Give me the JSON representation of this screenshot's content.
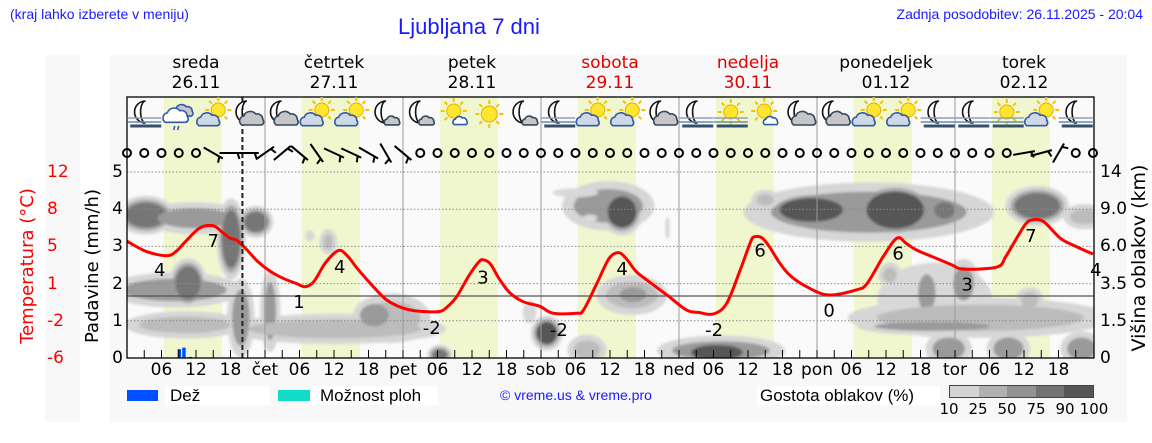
{
  "header": {
    "region_hint": "(kraj lahko izberete v meniju)",
    "title": "Ljubljana 7 dni",
    "last_update": "Zadnja posodobitev: 26.11.2025 - 20:04"
  },
  "days": [
    {
      "name": "sreda",
      "date": "26.11",
      "weekend": false
    },
    {
      "name": "četrtek",
      "date": "27.11",
      "weekend": false
    },
    {
      "name": "petek",
      "date": "28.11",
      "weekend": false
    },
    {
      "name": "sobota",
      "date": "29.11",
      "weekend": true
    },
    {
      "name": "nedelja",
      "date": "30.11",
      "weekend": true
    },
    {
      "name": "ponedeljek",
      "date": "01.12",
      "weekend": false
    },
    {
      "name": "torek",
      "date": "02.12",
      "weekend": false
    }
  ],
  "axes": {
    "temperature_title": "Temperatura (°C)",
    "temperature_ticks": [
      "12",
      "8",
      "5",
      "1",
      "-2",
      "-6"
    ],
    "precip_title": "Padavine (mm/h)",
    "precip_ticks": [
      "5",
      "4",
      "3",
      "2",
      "1",
      "0"
    ],
    "cloud_height_title": "Višina oblakov (km)",
    "cloud_height_ticks": [
      "14",
      "9.0",
      "6.0",
      "3.5",
      "1.5",
      "0"
    ]
  },
  "legend": {
    "rain_label": "Dež",
    "showers_label": "Možnost ploh",
    "copyright": "© vreme.us & vreme.pro",
    "cloud_density_label": "Gostota oblakov (%)",
    "cloud_density_scale": [
      "10",
      "25",
      "50",
      "75",
      "90",
      "100"
    ]
  },
  "colors": {
    "header_text": "#1a1aff",
    "weekend": "#e00000",
    "weekday": "#000000",
    "temperature": "#ff0000",
    "rain": "#0050ff",
    "showers": "#10dcc8",
    "daylight_band": "#f0f7cf",
    "density": [
      "#d4d4d4",
      "#b0b0b0",
      "#939393",
      "#737373",
      "#565656"
    ]
  },
  "chart_data": {
    "type": "line",
    "title": "Ljubljana 7 dni",
    "xlabel": "",
    "x_unit": "hours from 26.11 00:00",
    "x_range": [
      0,
      168
    ],
    "now_hour": 20.07,
    "daylight": {
      "start_hour": 6.4,
      "end_hour": 16.5
    },
    "grid": true,
    "x_tick_labels": [
      {
        "hour": 6,
        "label": "06"
      },
      {
        "hour": 12,
        "label": "12"
      },
      {
        "hour": 18,
        "label": "18"
      },
      {
        "hour": 24,
        "label": "čet"
      },
      {
        "hour": 30,
        "label": "06"
      },
      {
        "hour": 36,
        "label": "12"
      },
      {
        "hour": 42,
        "label": "18"
      },
      {
        "hour": 48,
        "label": "pet"
      },
      {
        "hour": 54,
        "label": "06"
      },
      {
        "hour": 60,
        "label": "12"
      },
      {
        "hour": 66,
        "label": "18"
      },
      {
        "hour": 72,
        "label": "sob"
      },
      {
        "hour": 78,
        "label": "06"
      },
      {
        "hour": 84,
        "label": "12"
      },
      {
        "hour": 90,
        "label": "18"
      },
      {
        "hour": 96,
        "label": "ned"
      },
      {
        "hour": 102,
        "label": "06"
      },
      {
        "hour": 108,
        "label": "12"
      },
      {
        "hour": 114,
        "label": "18"
      },
      {
        "hour": 120,
        "label": "pon"
      },
      {
        "hour": 126,
        "label": "06"
      },
      {
        "hour": 132,
        "label": "12"
      },
      {
        "hour": 138,
        "label": "18"
      },
      {
        "hour": 144,
        "label": "tor"
      },
      {
        "hour": 150,
        "label": "06"
      },
      {
        "hour": 156,
        "label": "12"
      },
      {
        "hour": 162,
        "label": "18"
      }
    ],
    "precip_axis": {
      "label": "Padavine (mm/h)",
      "ylim": [
        0,
        5
      ],
      "ticks": [
        0,
        1,
        2,
        3,
        4,
        5
      ]
    },
    "temperature_axis": {
      "label": "Temperatura (°C)",
      "ylim": [
        -6,
        12
      ],
      "ticks": [
        -6,
        -2,
        1,
        5,
        8,
        12
      ]
    },
    "cloud_height_axis": {
      "label": "Višina oblakov (km)",
      "ticks": [
        0,
        1.5,
        3.5,
        6.0,
        9.0,
        14
      ]
    },
    "series": [
      {
        "name": "Temperatura",
        "type": "line",
        "color": "#ff0000",
        "points": [
          [
            0,
            5.3
          ],
          [
            3.4,
            4.3
          ],
          [
            6.9,
            3.9
          ],
          [
            8.5,
            4.3
          ],
          [
            10.4,
            5.4
          ],
          [
            12.7,
            6.6
          ],
          [
            15,
            6.8
          ],
          [
            16.5,
            6.2
          ],
          [
            17.9,
            5.6
          ],
          [
            19.1,
            5.4
          ],
          [
            20.8,
            4.5
          ],
          [
            22.8,
            3.3
          ],
          [
            24.9,
            2.4
          ],
          [
            27.2,
            1.7
          ],
          [
            29.5,
            1.2
          ],
          [
            31,
            0.9
          ],
          [
            32.5,
            1.4
          ],
          [
            34.5,
            3.2
          ],
          [
            36.75,
            4.4
          ],
          [
            38.3,
            3.9
          ],
          [
            40,
            2.7
          ],
          [
            41.7,
            1.6
          ],
          [
            43.5,
            0.5
          ],
          [
            45.2,
            -0.4
          ],
          [
            47.2,
            -1.0
          ],
          [
            49.2,
            -1.35
          ],
          [
            51.5,
            -1.5
          ],
          [
            54.4,
            -1.5
          ],
          [
            55.8,
            -1.0
          ],
          [
            57.3,
            -0.1
          ],
          [
            59.5,
            2.0
          ],
          [
            61.2,
            3.3
          ],
          [
            62,
            3.5
          ],
          [
            63.2,
            3.1
          ],
          [
            64.8,
            1.6
          ],
          [
            66.6,
            0.3
          ],
          [
            68.9,
            -0.55
          ],
          [
            71.8,
            -1.0
          ],
          [
            74.1,
            -1.67
          ],
          [
            78.2,
            -1.67
          ],
          [
            79.4,
            -1.35
          ],
          [
            81.7,
            1.2
          ],
          [
            83.8,
            3.6
          ],
          [
            85.4,
            4.2
          ],
          [
            86.7,
            3.7
          ],
          [
            88.5,
            2.4
          ],
          [
            90.4,
            1.55
          ],
          [
            93.9,
            0.1
          ],
          [
            97.3,
            -1.35
          ],
          [
            99.5,
            -1.6
          ],
          [
            102,
            -1.74
          ],
          [
            104.3,
            -0.7
          ],
          [
            106.7,
            2.6
          ],
          [
            108.5,
            5.3
          ],
          [
            109.2,
            5.74
          ],
          [
            110.5,
            5.6
          ],
          [
            111.8,
            4.7
          ],
          [
            113.5,
            3.2
          ],
          [
            115.3,
            2.0
          ],
          [
            118.2,
            0.9
          ],
          [
            122,
            0.1
          ],
          [
            126.9,
            0.6
          ],
          [
            128.7,
            1.2
          ],
          [
            131.5,
            3.8
          ],
          [
            133.9,
            5.6
          ],
          [
            135.5,
            5.1
          ],
          [
            137.3,
            4.45
          ],
          [
            141.4,
            3.5
          ],
          [
            143.5,
            3.0
          ],
          [
            145.5,
            2.6
          ],
          [
            151.3,
            2.8
          ],
          [
            152.8,
            3.8
          ],
          [
            154.2,
            5.1
          ],
          [
            156.2,
            6.9
          ],
          [
            157.4,
            7.36
          ],
          [
            159.4,
            7.2
          ],
          [
            162.3,
            5.6
          ],
          [
            165,
            4.8
          ],
          [
            168,
            4.06
          ]
        ]
      },
      {
        "name": "Dež",
        "type": "bar",
        "color": "#0050ff",
        "bars": [
          {
            "start": 8.8,
            "end": 9.4,
            "value": 0.24
          },
          {
            "start": 9.6,
            "end": 10.2,
            "value": 0.28
          },
          {
            "start": 10.7,
            "end": 11.3,
            "value": 0.03
          }
        ]
      }
    ],
    "temperature_labels": [
      {
        "text": "4",
        "hour": 5.7,
        "pos": 2.5
      },
      {
        "text": "7",
        "hour": 15.0,
        "pos": 5.3
      },
      {
        "text": "1",
        "hour": 29.9,
        "pos": -0.6
      },
      {
        "text": "4",
        "hour": 37.0,
        "pos": 2.8
      },
      {
        "text": "-2",
        "hour": 53.0,
        "pos": -3.1
      },
      {
        "text": "3",
        "hour": 61.9,
        "pos": 1.8
      },
      {
        "text": "-2",
        "hour": 75.1,
        "pos": -3.3
      },
      {
        "text": "4",
        "hour": 86.1,
        "pos": 2.6
      },
      {
        "text": "-2",
        "hour": 102.1,
        "pos": -3.3
      },
      {
        "text": "6",
        "hour": 110.1,
        "pos": 4.4
      },
      {
        "text": "0",
        "hour": 122.1,
        "pos": -1.4
      },
      {
        "text": "6",
        "hour": 134.1,
        "pos": 4.1
      },
      {
        "text": "3",
        "hour": 146.1,
        "pos": 1.1
      },
      {
        "text": "7",
        "hour": 157.2,
        "pos": 5.8
      },
      {
        "text": "4",
        "hour": 168.5,
        "pos": 2.5
      }
    ],
    "weather_icons": [
      {
        "hour": 3,
        "type": "moon-fog"
      },
      {
        "hour": 9,
        "type": "cloud-rain"
      },
      {
        "hour": 15,
        "type": "sun-cloud"
      },
      {
        "hour": 21,
        "type": "moon-cloud"
      },
      {
        "hour": 27,
        "type": "moon-cloud"
      },
      {
        "hour": 33,
        "type": "sun-cloud"
      },
      {
        "hour": 39,
        "type": "sun-cloud"
      },
      {
        "hour": 45,
        "type": "moon-small-cloud"
      },
      {
        "hour": 51,
        "type": "moon-small-cloud"
      },
      {
        "hour": 57,
        "type": "sun-small-cloud"
      },
      {
        "hour": 63,
        "type": "sun"
      },
      {
        "hour": 69,
        "type": "moon-small-cloud"
      },
      {
        "hour": 75,
        "type": "moon-fog"
      },
      {
        "hour": 81,
        "type": "sun-cloud"
      },
      {
        "hour": 87,
        "type": "sun-cloud"
      },
      {
        "hour": 93,
        "type": "moon-cloud"
      },
      {
        "hour": 99,
        "type": "moon-fog"
      },
      {
        "hour": 105,
        "type": "sun-fog"
      },
      {
        "hour": 111,
        "type": "sun-small-cloud"
      },
      {
        "hour": 117,
        "type": "moon-cloud"
      },
      {
        "hour": 123,
        "type": "moon-cloud"
      },
      {
        "hour": 129,
        "type": "sun-cloud"
      },
      {
        "hour": 135,
        "type": "sun-cloud"
      },
      {
        "hour": 141,
        "type": "moon-fog"
      },
      {
        "hour": 147,
        "type": "moon-fog"
      },
      {
        "hour": 153,
        "type": "sun-fog"
      },
      {
        "hour": 159,
        "type": "sun-cloud"
      },
      {
        "hour": 165,
        "type": "moon-fog"
      }
    ],
    "wind": {
      "step_hours": 3,
      "symbols": [
        "calm",
        "calm",
        "calm",
        "calm",
        "calm",
        30,
        0,
        0,
        -35,
        -40,
        40,
        55,
        25,
        25,
        30,
        60,
        40,
        "calm",
        "calm",
        "calm",
        "calm",
        "calm",
        "calm",
        "calm",
        "calm",
        "calm",
        "calm",
        "calm",
        "calm",
        "calm",
        "calm",
        "calm",
        "calm",
        "calm",
        "calm",
        "calm",
        "calm",
        "calm",
        "calm",
        "calm",
        "calm",
        "calm",
        "calm",
        "calm",
        "calm",
        "calm",
        "calm",
        "calm",
        "calm",
        "calm",
        "calm",
        "calm",
        -10,
        -15,
        -60,
        "calm",
        "calm"
      ]
    },
    "cloud_blobs_format": [
      "hour",
      "level",
      "radius_hours",
      "radius_level",
      "density_pct"
    ],
    "cloud_blobs": [
      [
        3.3,
        3.84,
        3.6,
        0.34,
        75
      ],
      [
        11.8,
        3.76,
        6.5,
        0.27,
        50
      ],
      [
        18.1,
        3.2,
        1.6,
        0.78,
        75
      ],
      [
        22.4,
        3.66,
        2.0,
        0.27,
        75
      ],
      [
        8.3,
        1.83,
        9.0,
        0.3,
        50
      ],
      [
        10.6,
        2.02,
        2.2,
        0.45,
        75
      ],
      [
        10.1,
        0.89,
        8.0,
        0.22,
        25
      ],
      [
        19.8,
        1.08,
        1.5,
        0.75,
        50
      ],
      [
        24.9,
        1.26,
        1.0,
        0.78,
        50
      ],
      [
        36.2,
        0.78,
        15,
        0.25,
        25
      ],
      [
        31.8,
        3.28,
        0.8,
        0.15,
        10
      ],
      [
        35.0,
        3.12,
        0.8,
        0.2,
        25
      ],
      [
        46.0,
        1.07,
        5.0,
        0.45,
        25
      ],
      [
        43.0,
        1.15,
        2.5,
        0.3,
        50
      ],
      [
        54.4,
        0.08,
        1.3,
        0.15,
        75
      ],
      [
        73.0,
        0.67,
        1.8,
        0.3,
        90
      ],
      [
        70.0,
        1.23,
        1.2,
        0.3,
        10
      ],
      [
        80.0,
        0.22,
        2.3,
        0.25,
        25
      ],
      [
        83.7,
        4.09,
        6.0,
        0.45,
        50
      ],
      [
        86.1,
        3.92,
        2.5,
        0.42,
        90
      ],
      [
        78.0,
        4.44,
        4.0,
        0.12,
        10
      ],
      [
        80.5,
        3.76,
        1.3,
        0.1,
        10
      ],
      [
        94.0,
        3.5,
        0.4,
        0.3,
        10
      ],
      [
        87.8,
        1.69,
        4.5,
        0.35,
        25
      ],
      [
        88.0,
        1.7,
        2.3,
        0.2,
        50
      ],
      [
        103.3,
        0.2,
        8.5,
        0.25,
        50
      ],
      [
        102.6,
        0.15,
        4.5,
        0.2,
        90
      ],
      [
        111.0,
        4.25,
        1.5,
        0.15,
        25
      ],
      [
        129.0,
        3.92,
        17,
        0.55,
        50
      ],
      [
        119.0,
        3.98,
        5.5,
        0.32,
        90
      ],
      [
        133.6,
        3.98,
        5.0,
        0.5,
        90
      ],
      [
        142.2,
        3.97,
        1.8,
        0.22,
        75
      ],
      [
        140.5,
        1.56,
        10,
        1.0,
        10
      ],
      [
        139.1,
        1.75,
        1.5,
        0.5,
        50
      ],
      [
        145.5,
        2.0,
        1.8,
        0.45,
        50
      ],
      [
        132.7,
        2.23,
        1.2,
        0.2,
        25
      ],
      [
        148.4,
        1.08,
        18,
        0.35,
        25
      ],
      [
        140.0,
        0.85,
        10,
        0.12,
        50
      ],
      [
        142.9,
        0.25,
        2.8,
        0.3,
        50
      ],
      [
        153.3,
        0.25,
        2.6,
        0.3,
        50
      ],
      [
        166.0,
        0.25,
        2.5,
        0.3,
        50
      ],
      [
        158.3,
        4.09,
        4.0,
        0.35,
        75
      ],
      [
        166.5,
        3.8,
        2.5,
        0.2,
        25
      ],
      [
        157.0,
        1.56,
        1.5,
        0.2,
        25
      ]
    ]
  }
}
